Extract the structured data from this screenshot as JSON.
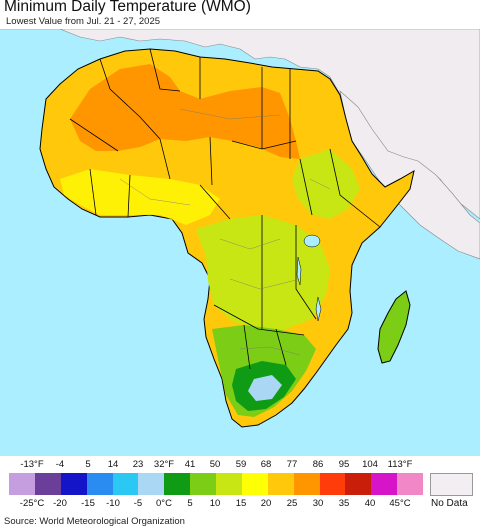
{
  "header": {
    "title": "Minimum Daily Temperature (WMO)",
    "subtitle": "Lowest Value from Jul. 21 - 27, 2025"
  },
  "legend": {
    "fahrenheit_labels": [
      "-13°F",
      "-4",
      "5",
      "14",
      "23",
      "32°F",
      "41",
      "50",
      "59",
      "68",
      "77",
      "86",
      "95",
      "104",
      "113°F"
    ],
    "celsius_labels": [
      "-25°C",
      "-20",
      "-15",
      "-10",
      "-5",
      "0°C",
      "5",
      "10",
      "15",
      "20",
      "25",
      "30",
      "35",
      "40",
      "45°C"
    ],
    "colors": [
      "#c59ee0",
      "#6a3e99",
      "#1414c8",
      "#2a8cf0",
      "#2ac8f2",
      "#aad8f4",
      "#0f9c14",
      "#7ccd16",
      "#c8e614",
      "#ffff05",
      "#ffc80a",
      "#ff9600",
      "#ff3c0a",
      "#c81e0a",
      "#d614c8",
      "#f287c8"
    ],
    "no_data_label": "No Data",
    "no_data_color": "#f2eef2"
  },
  "map": {
    "ocean_color": "#aaeeff",
    "nodata_land_color": "#f0ecf0",
    "border_color": "#000000"
  },
  "footer": {
    "source": "Source: World Meteorological Organization"
  }
}
